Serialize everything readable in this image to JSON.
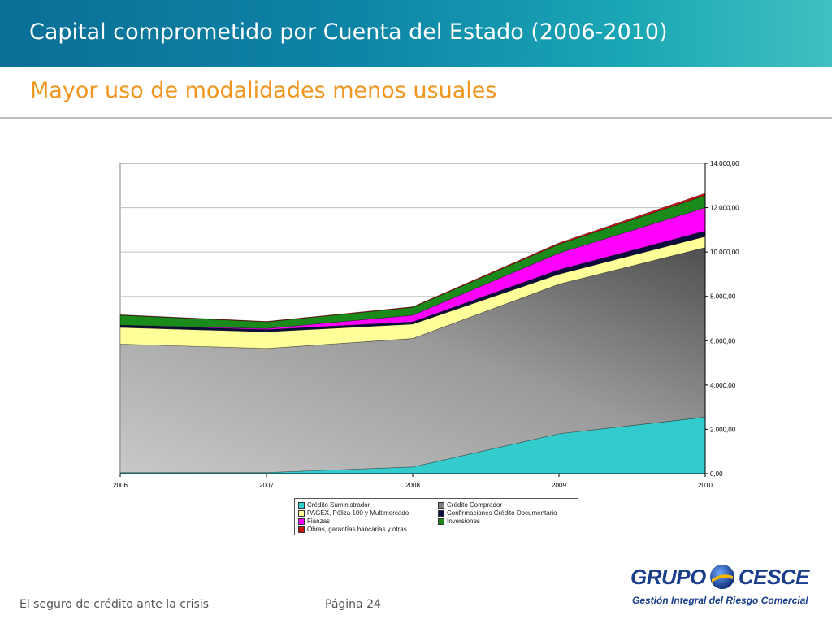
{
  "header": {
    "title": "Capital comprometido por Cuenta del Estado (2006-2010)",
    "subtitle": "Mayor uso de modalidades menos usuales"
  },
  "chart_data": {
    "type": "area",
    "stacked": true,
    "categories": [
      "2006",
      "2007",
      "2008",
      "2009",
      "2010"
    ],
    "y_ticks": [
      "0,00",
      "2.000,00",
      "4.000,00",
      "6.000,00",
      "8.000,00",
      "10.000,00",
      "12.000,00",
      "14.000,00"
    ],
    "ylim": [
      0,
      14000
    ],
    "y_axis_position": "right",
    "grid": true,
    "legend_position": "bottom",
    "series": [
      {
        "name": "Crédito Suministrador",
        "color": "#33cccc",
        "values": [
          50,
          50,
          300,
          1800,
          2550
        ]
      },
      {
        "name": "Crédito Comprador",
        "color": "#9a9a9a",
        "values": [
          5800,
          5600,
          5800,
          6750,
          7650
        ]
      },
      {
        "name": "PAGEX, Póliza 100 y Multimercado",
        "color": "#ffff99",
        "values": [
          750,
          750,
          650,
          450,
          500
        ]
      },
      {
        "name": "Confirmaciones Crédito Documentario",
        "color": "#0a0a3c",
        "values": [
          100,
          100,
          100,
          200,
          250
        ]
      },
      {
        "name": "Fianzas",
        "color": "#ff00ff",
        "values": [
          0,
          50,
          300,
          750,
          1050
        ]
      },
      {
        "name": "Inversiones",
        "color": "#1a8a1a",
        "values": [
          450,
          300,
          350,
          400,
          550
        ]
      },
      {
        "name": "Obras, garantías bancarias y otras",
        "color": "#cc1111",
        "values": [
          20,
          20,
          30,
          60,
          100
        ]
      }
    ]
  },
  "footer": {
    "left_text": "El seguro de crédito ante la crisis",
    "page_text": "Página 24"
  },
  "logo": {
    "word1": "GRUPO",
    "word2": "CESCE",
    "tagline": "Gestión Integral del Riesgo Comercial"
  }
}
